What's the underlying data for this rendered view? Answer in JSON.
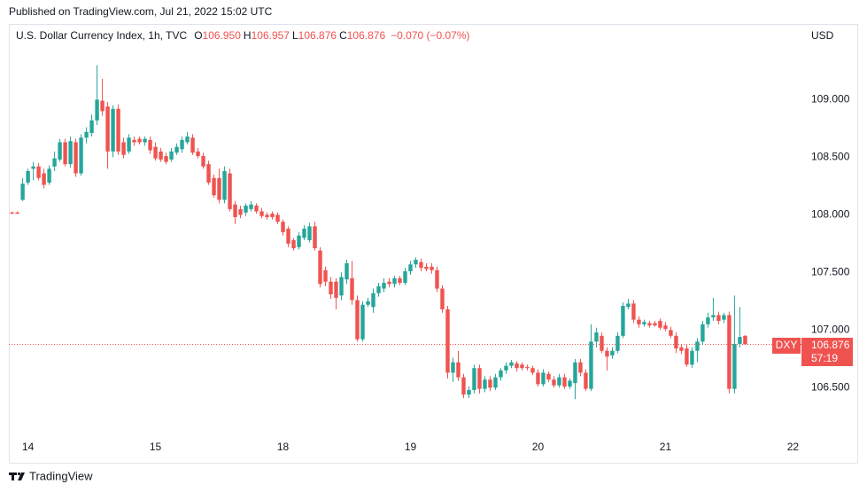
{
  "header": {
    "published": "Published on TradingView.com, Jul 21, 2022 15:02 UTC"
  },
  "legend": {
    "symbol": "U.S. Dollar Currency Index, 1h, TVC",
    "open_label": "O",
    "open": "106.950",
    "high_label": "H",
    "high": "106.957",
    "low_label": "L",
    "low": "106.876",
    "close_label": "C",
    "close": "106.876",
    "change": "−0.070 (−0.07%)"
  },
  "currency": "USD",
  "price_tag": {
    "ticker": "DXY",
    "price": "106.876",
    "countdown": "57:19"
  },
  "footer": {
    "brand": "TradingView"
  },
  "chart_data": {
    "type": "candlestick",
    "up_color": "#26a69a",
    "down_color": "#ef5350",
    "grid": false,
    "xlim": [
      -0.6,
      148.6
    ],
    "ylim": [
      106.11,
      109.48
    ],
    "xticks": [
      {
        "value": 3,
        "label": "14"
      },
      {
        "value": 27,
        "label": "15"
      },
      {
        "value": 51,
        "label": "18"
      },
      {
        "value": 75,
        "label": "19"
      },
      {
        "value": 99,
        "label": "20"
      },
      {
        "value": 123,
        "label": "21"
      },
      {
        "value": 147,
        "label": "22"
      }
    ],
    "yticks": [
      {
        "value": 106.5,
        "label": "106.500"
      },
      {
        "value": 107,
        "label": "107.000"
      },
      {
        "value": 107.5,
        "label": "107.500"
      },
      {
        "value": 108,
        "label": "108.000"
      },
      {
        "value": 108.5,
        "label": "108.500"
      },
      {
        "value": 109,
        "label": "109.000"
      }
    ],
    "last_price": 106.876,
    "x": [
      0,
      1,
      2,
      3,
      4,
      5,
      6,
      7,
      8,
      9,
      10,
      11,
      12,
      13,
      14,
      15,
      16,
      17,
      18,
      19,
      20,
      21,
      22,
      23,
      24,
      25,
      26,
      27,
      28,
      29,
      30,
      31,
      32,
      33,
      34,
      35,
      36,
      37,
      38,
      39,
      40,
      41,
      42,
      43,
      44,
      45,
      46,
      47,
      48,
      49,
      50,
      51,
      52,
      53,
      54,
      55,
      56,
      57,
      58,
      59,
      60,
      61,
      62,
      63,
      64,
      65,
      66,
      67,
      68,
      69,
      70,
      71,
      72,
      73,
      74,
      75,
      76,
      77,
      78,
      79,
      80,
      81,
      82,
      83,
      84,
      85,
      86,
      87,
      88,
      89,
      90,
      91,
      92,
      93,
      94,
      95,
      96,
      97,
      98,
      99,
      100,
      101,
      102,
      103,
      104,
      105,
      106,
      107,
      108,
      109,
      110,
      111,
      112,
      113,
      114,
      115,
      116,
      117,
      118,
      119,
      120,
      121,
      122,
      123,
      124,
      125,
      126,
      127,
      128,
      129,
      130,
      131,
      132,
      133,
      134,
      135,
      136,
      137,
      138
    ],
    "open": [
      108.02,
      108.02,
      108.13,
      108.28,
      108.4,
      108.42,
      108.36,
      108.28,
      108.42,
      108.48,
      108.63,
      108.44,
      108.63,
      108.36,
      108.67,
      108.71,
      108.82,
      108.99,
      108.94,
      108.55,
      108.92,
      108.63,
      108.55,
      108.65,
      108.66,
      108.63,
      108.65,
      108.59,
      108.55,
      108.51,
      108.48,
      108.54,
      108.57,
      108.63,
      108.67,
      108.55,
      108.51,
      108.44,
      108.32,
      108.32,
      108.13,
      108.36,
      108.09,
      108.05,
      108.02,
      108.05,
      108.08,
      108.03,
      108.0,
      108.01,
      108.0,
      107.94,
      107.88,
      107.78,
      107.72,
      107.8,
      107.78,
      107.9,
      107.69,
      107.52,
      107.42,
      107.42,
      107.3,
      107.44,
      107.45,
      107.26,
      106.92,
      107.22,
      107.2,
      107.32,
      107.36,
      107.42,
      107.4,
      107.45,
      107.41,
      107.51,
      107.57,
      107.59,
      107.55,
      107.55,
      107.52,
      107.36,
      107.18,
      106.63,
      106.72,
      106.59,
      106.44,
      106.48,
      106.67,
      106.49,
      106.57,
      106.5,
      106.59,
      106.65,
      106.69,
      106.71,
      106.7,
      106.68,
      106.67,
      106.63,
      106.53,
      106.62,
      106.57,
      106.52,
      106.59,
      106.51,
      106.54,
      106.72,
      106.63,
      106.49,
      106.9,
      106.95,
      106.82,
      106.78,
      106.82,
      106.95,
      107.2,
      107.23,
      107.09,
      107.05,
      107.06,
      107.06,
      107.08,
      107.04,
      107.0,
      106.95,
      106.85,
      106.84,
      106.7,
      106.82,
      106.9,
      107.05,
      107.11,
      107.13,
      107.09,
      107.13,
      106.49,
      106.88,
      106.95
    ],
    "high": [
      108.03,
      108.03,
      108.32,
      108.4,
      108.46,
      108.45,
      108.4,
      108.43,
      108.55,
      108.66,
      108.66,
      108.68,
      108.66,
      108.7,
      108.76,
      108.87,
      109.3,
      109.18,
      108.98,
      108.95,
      108.96,
      108.67,
      108.7,
      108.68,
      108.68,
      108.68,
      108.68,
      108.63,
      108.58,
      108.54,
      108.58,
      108.62,
      108.68,
      108.72,
      108.7,
      108.58,
      108.54,
      108.47,
      108.35,
      108.4,
      108.42,
      108.4,
      108.12,
      108.08,
      108.1,
      108.12,
      108.1,
      108.06,
      108.02,
      108.03,
      108.02,
      107.96,
      107.9,
      107.8,
      107.85,
      107.91,
      107.93,
      107.94,
      107.72,
      107.55,
      107.46,
      107.45,
      107.5,
      107.61,
      107.6,
      107.3,
      107.25,
      107.28,
      107.36,
      107.41,
      107.45,
      107.45,
      107.47,
      107.47,
      107.54,
      107.6,
      107.63,
      107.62,
      107.58,
      107.58,
      107.55,
      107.39,
      107.21,
      106.76,
      106.82,
      106.62,
      106.51,
      106.7,
      106.7,
      106.6,
      106.6,
      106.62,
      106.67,
      106.72,
      106.74,
      106.73,
      106.72,
      106.7,
      106.69,
      106.66,
      106.66,
      106.64,
      106.6,
      106.62,
      106.62,
      106.58,
      106.75,
      106.75,
      106.66,
      107.05,
      107.02,
      106.98,
      106.85,
      106.85,
      106.98,
      107.24,
      107.27,
      107.26,
      107.12,
      107.09,
      107.08,
      107.08,
      107.1,
      107.07,
      107.03,
      106.98,
      106.88,
      106.87,
      106.85,
      106.93,
      107.08,
      107.15,
      107.28,
      107.16,
      107.15,
      107.16,
      107.3,
      107.2,
      106.957
    ],
    "low": [
      108.01,
      108.01,
      108.12,
      108.26,
      108.3,
      108.3,
      108.23,
      108.26,
      108.38,
      108.46,
      108.42,
      108.41,
      108.33,
      108.34,
      108.62,
      108.68,
      108.78,
      108.86,
      108.4,
      108.5,
      108.52,
      108.49,
      108.53,
      108.6,
      108.61,
      108.6,
      108.53,
      108.47,
      108.46,
      108.44,
      108.46,
      108.52,
      108.54,
      108.61,
      108.52,
      108.49,
      108.4,
      108.26,
      108.15,
      108.1,
      108.1,
      108.03,
      107.92,
      107.97,
      107.99,
      108.03,
      108.01,
      107.97,
      107.96,
      107.96,
      107.92,
      107.82,
      107.72,
      107.69,
      107.7,
      107.78,
      107.76,
      107.69,
      107.37,
      107.38,
      107.27,
      107.18,
      107.26,
      107.4,
      107.22,
      106.9,
      106.9,
      107.2,
      107.15,
      107.29,
      107.33,
      107.37,
      107.37,
      107.39,
      107.39,
      107.48,
      107.54,
      107.51,
      107.51,
      107.49,
      107.33,
      107.15,
      106.58,
      106.55,
      106.56,
      106.41,
      106.41,
      106.45,
      106.45,
      106.46,
      106.47,
      106.48,
      106.56,
      106.62,
      106.67,
      106.64,
      106.65,
      106.65,
      106.61,
      106.51,
      106.51,
      106.55,
      106.5,
      106.5,
      106.49,
      106.49,
      106.4,
      106.6,
      106.47,
      106.47,
      106.85,
      106.8,
      106.65,
      106.75,
      106.8,
      106.93,
      107.18,
      107.06,
      107.02,
      107.03,
      107.02,
      107.03,
      107.0,
      106.99,
      106.93,
      106.8,
      106.79,
      106.68,
      106.67,
      106.72,
      106.87,
      107.02,
      107.08,
      107.05,
      107.06,
      106.45,
      106.45,
      106.85,
      106.876
    ],
    "close": [
      108.01,
      108.01,
      108.27,
      108.38,
      108.42,
      108.32,
      108.26,
      108.4,
      108.49,
      108.63,
      108.44,
      108.64,
      108.36,
      108.67,
      108.72,
      108.82,
      109.0,
      108.9,
      108.55,
      108.92,
      108.55,
      108.52,
      108.67,
      108.63,
      108.63,
      108.66,
      108.56,
      108.49,
      108.48,
      108.46,
      108.55,
      108.59,
      108.65,
      108.68,
      108.54,
      108.51,
      108.42,
      108.28,
      108.17,
      108.13,
      108.38,
      108.05,
      107.98,
      108.0,
      108.08,
      108.09,
      108.03,
      107.99,
      107.98,
      107.98,
      107.94,
      107.85,
      107.75,
      107.71,
      107.82,
      107.88,
      107.9,
      107.71,
      107.4,
      107.42,
      107.31,
      107.28,
      107.46,
      107.58,
      107.26,
      106.92,
      107.22,
      107.25,
      107.32,
      107.38,
      107.41,
      107.4,
      107.45,
      107.41,
      107.51,
      107.57,
      107.61,
      107.54,
      107.53,
      107.52,
      107.36,
      107.18,
      106.63,
      106.72,
      106.59,
      106.44,
      106.48,
      106.67,
      106.49,
      106.57,
      106.5,
      106.59,
      106.65,
      106.69,
      106.72,
      106.67,
      106.67,
      106.67,
      106.63,
      106.53,
      106.63,
      106.57,
      106.52,
      106.59,
      106.51,
      106.56,
      106.72,
      106.63,
      106.49,
      106.9,
      106.98,
      106.82,
      106.77,
      106.82,
      106.95,
      107.21,
      107.23,
      107.09,
      107.05,
      107.07,
      107.04,
      107.04,
      107.02,
      107.01,
      106.95,
      106.84,
      106.82,
      106.7,
      106.82,
      106.9,
      107.05,
      107.11,
      107.13,
      107.08,
      107.13,
      106.49,
      106.88,
      106.94,
      106.876
    ]
  }
}
